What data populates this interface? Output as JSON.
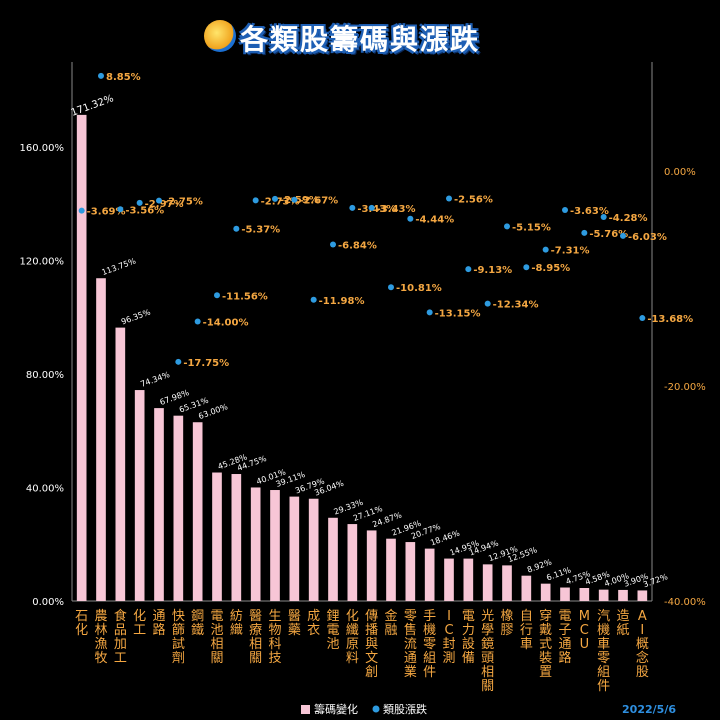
{
  "title": "各類股籌碼與漲跌",
  "date": "2022/5/6",
  "colors": {
    "bar": "#f7c6d6",
    "dot": "#2e9be0",
    "left_axis": "#ffffff",
    "right_axis": "#f4a742",
    "category": "#f4a742",
    "top_bar_label": "#ffe600",
    "background": "#000000"
  },
  "chart_data": {
    "type": "bar",
    "categories": [
      "石化",
      "農林漁牧",
      "食品加工",
      "化工",
      "通路",
      "快篩試劑",
      "鋼鐵",
      "電池相關",
      "紡織",
      "醫療相關",
      "生物科技",
      "醫藥",
      "成衣",
      "鋰電池",
      "化纖原料",
      "傳播與文創",
      "金融",
      "零售流通業",
      "手機零組件",
      "IC封測",
      "電力設備",
      "光學鏡頭相關",
      "橡膠",
      "自行車",
      "穿戴式裝置",
      "電子通路",
      "MCU",
      "汽機車零組件",
      "造紙",
      "AI概念股"
    ],
    "series": [
      {
        "name": "籌碼變化",
        "axis": "left",
        "values": [
          171.32,
          113.75,
          96.35,
          74.34,
          67.98,
          65.31,
          63.0,
          45.28,
          44.75,
          40.01,
          39.11,
          36.79,
          36.04,
          29.33,
          27.11,
          24.87,
          21.96,
          20.77,
          18.46,
          14.95,
          14.94,
          12.91,
          12.55,
          8.92,
          6.11,
          4.75,
          4.58,
          4.0,
          3.9,
          3.72
        ],
        "labels": [
          "171.32%",
          "113.75%",
          "96.35%",
          "74.34%",
          "67.98%",
          "65.31%",
          "63.00%",
          "45.28%",
          "44.75%",
          "40.01%",
          "39.11%",
          "36.79%",
          "36.04%",
          "29.33%",
          "27.11%",
          "24.87%",
          "21.96%",
          "20.77%",
          "18.46%",
          "14.95%",
          "14.94%",
          "12.91%",
          "12.55%",
          "8.92%",
          "6.11%",
          "4.75%",
          "4.58%",
          "4.00%",
          "3.90%",
          "3.72%"
        ]
      },
      {
        "name": "類股漲跌",
        "axis": "right",
        "values": [
          -3.69,
          8.85,
          -3.56,
          -2.97,
          -2.75,
          -17.75,
          -14.0,
          -11.56,
          -5.37,
          -2.73,
          -2.59,
          -2.67,
          -11.98,
          -6.84,
          -3.43,
          -3.43,
          -10.81,
          -4.44,
          -13.15,
          -2.56,
          -9.13,
          -12.34,
          -5.15,
          -8.95,
          -7.31,
          -3.63,
          -5.76,
          -4.28,
          -6.03,
          -13.68
        ],
        "labels": [
          "-3.69%",
          "8.85%",
          "-3.56%",
          "-2.97%",
          "-2.75%",
          "-17.75%",
          "-14.00%",
          "-11.56%",
          "-5.37%",
          "-2.73%",
          "-2.59%",
          "-2.67%",
          "-11.98%",
          "-6.84%",
          "-3.43%",
          "-3.43%",
          "-10.81%",
          "-4.44%",
          "-13.15%",
          "-2.56%",
          "-9.13%",
          "-12.34%",
          "-5.15%",
          "-8.95%",
          "-7.31%",
          "-3.63%",
          "-5.76%",
          "-4.28%",
          "-6.03%",
          "-13.68%"
        ]
      }
    ],
    "left_axis": {
      "ylim": [
        0,
        160
      ],
      "ticks": [
        0,
        40,
        80,
        120,
        160
      ],
      "tick_labels": [
        "0.00%",
        "40.00%",
        "80.00%",
        "120.00%",
        "160.00%"
      ]
    },
    "right_axis": {
      "ylim": [
        -40,
        0
      ],
      "ticks": [
        -40,
        -20,
        0
      ],
      "tick_labels": [
        "-40.00%",
        "-20.00%",
        "0.00%"
      ]
    },
    "legend_position": "bottom",
    "grid": false
  }
}
